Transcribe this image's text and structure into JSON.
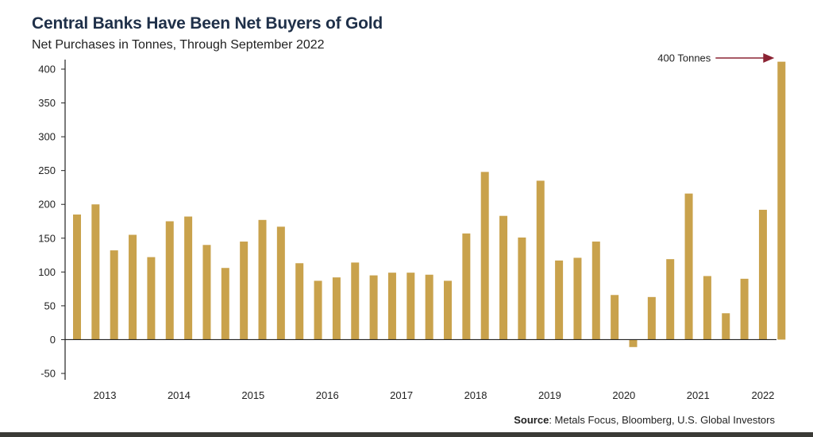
{
  "title": "Central Banks Have Been Net Buyers of Gold",
  "subtitle": "Net Purchases in Tonnes, Through September 2022",
  "source": {
    "label": "Source",
    "text": ": Metals Focus, Bloomberg, U.S. Global Investors"
  },
  "colors": {
    "bar": "#c9a24c",
    "arrow": "#8b2333",
    "axis": "#222222"
  },
  "chart_data": {
    "type": "bar",
    "ylim": [
      -60,
      410
    ],
    "yticks": [
      400,
      350,
      300,
      250,
      200,
      150,
      100,
      50,
      0,
      -50
    ],
    "grid": false,
    "legend": "none",
    "year_labels": [
      "2013",
      "2014",
      "2015",
      "2016",
      "2017",
      "2018",
      "2019",
      "2020",
      "2021",
      "2022"
    ],
    "values": [
      185,
      200,
      132,
      155,
      122,
      175,
      182,
      140,
      106,
      145,
      177,
      167,
      113,
      87,
      92,
      114,
      95,
      99,
      99,
      96,
      87,
      157,
      248,
      183,
      151,
      235,
      117,
      121,
      145,
      66,
      -11,
      63,
      119,
      216,
      94,
      39,
      90,
      192,
      411
    ],
    "annotation": {
      "text": "400 Tonnes",
      "target_index": 38
    }
  }
}
